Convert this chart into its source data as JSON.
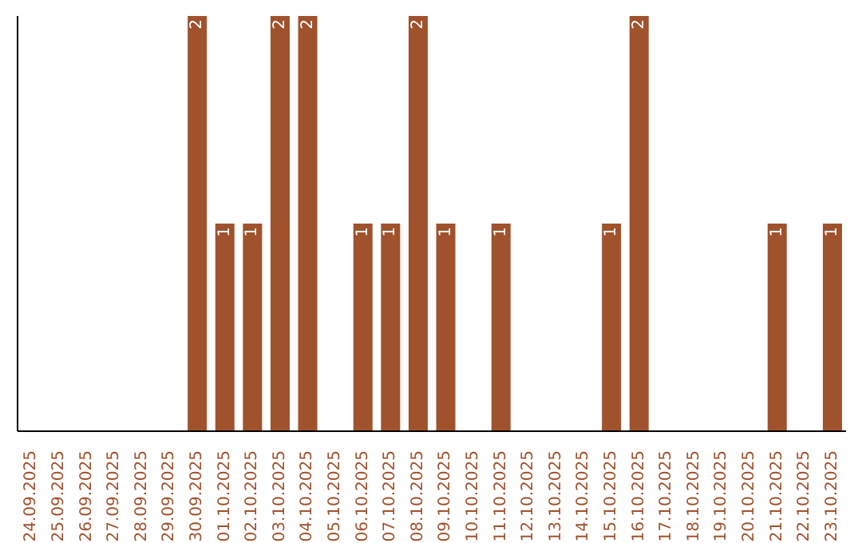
{
  "chart_data": {
    "type": "bar",
    "categories": [
      "24.09.2025",
      "25.09.2025",
      "26.09.2025",
      "27.09.2025",
      "28.09.2025",
      "29.09.2025",
      "30.09.2025",
      "01.10.2025",
      "02.10.2025",
      "03.10.2025",
      "04.10.2025",
      "05.10.2025",
      "06.10.2025",
      "07.10.2025",
      "08.10.2025",
      "09.10.2025",
      "10.10.2025",
      "11.10.2025",
      "12.10.2025",
      "13.10.2025",
      "14.10.2025",
      "15.10.2025",
      "16.10.2025",
      "17.10.2025",
      "18.10.2025",
      "19.10.2025",
      "20.10.2025",
      "21.10.2025",
      "22.10.2025",
      "23.10.2025"
    ],
    "values": [
      0,
      0,
      0,
      0,
      0,
      0,
      2,
      1,
      1,
      2,
      2,
      0,
      1,
      1,
      2,
      1,
      0,
      1,
      0,
      0,
      0,
      1,
      2,
      0,
      0,
      0,
      0,
      1,
      0,
      1
    ],
    "value_labels": [
      null,
      null,
      null,
      null,
      null,
      null,
      "2",
      "1",
      "1",
      "2",
      "2",
      null,
      "1",
      "1",
      "2",
      "1",
      null,
      "1",
      null,
      null,
      null,
      "1",
      "2",
      null,
      null,
      null,
      null,
      "1",
      null,
      "1"
    ],
    "color": "#a0522d",
    "ylim": [
      0,
      2
    ],
    "tick_labels": "x",
    "grid": false
  }
}
